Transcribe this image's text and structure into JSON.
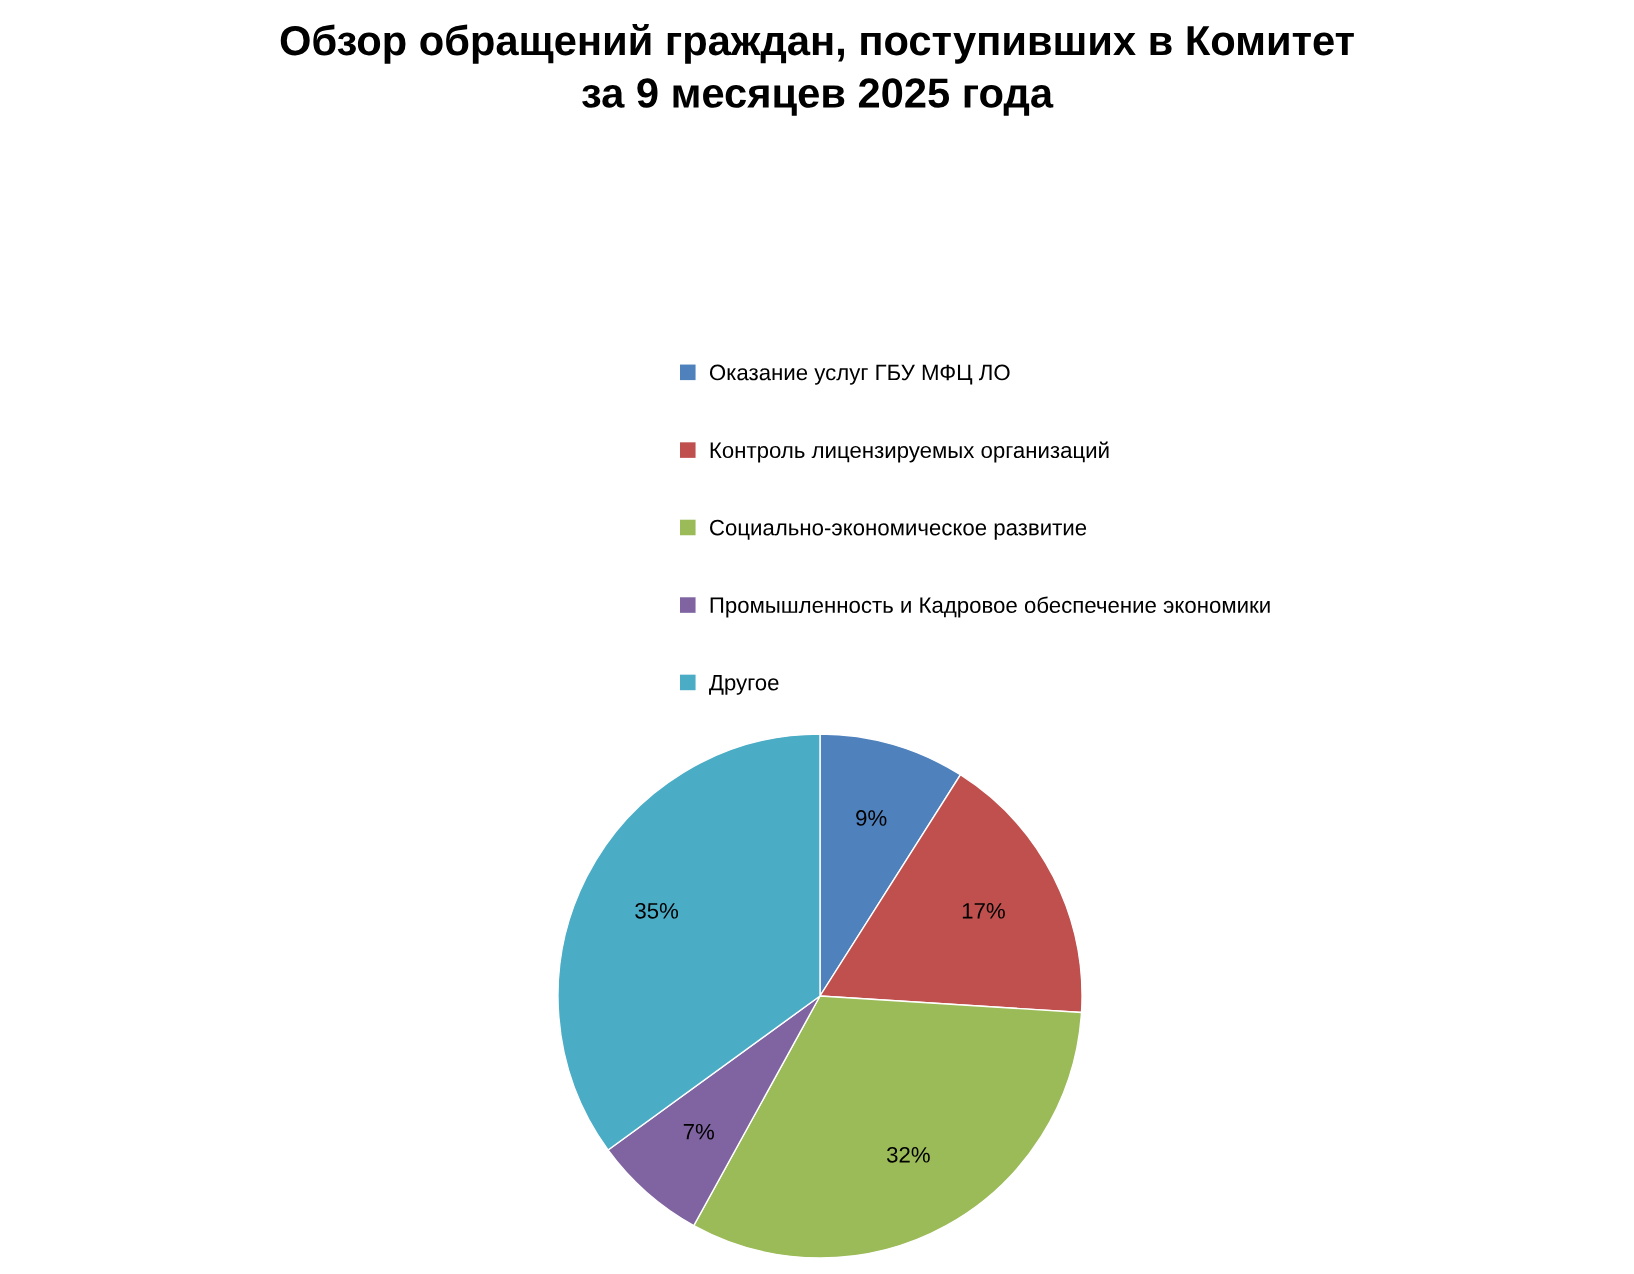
{
  "chart_data": {
    "type": "pie",
    "title": "Обзор обращений граждан, поступивших в Комитет\nза 9 месяцев 2025 года",
    "categories": [
      "Оказание услуг ГБУ МФЦ ЛО",
      "Контроль лицензируемых организаций",
      "Социально-экономическое развитие",
      "Промышленность и Кадровое обеспечение экономики",
      "Другое"
    ],
    "values": [
      9,
      17,
      32,
      7,
      35
    ],
    "colors": [
      "#4f81bd",
      "#c0504d",
      "#9bbb59",
      "#8064a2",
      "#4bacc6"
    ],
    "value_labels": [
      "9%",
      "17%",
      "32%",
      "7%",
      "35%"
    ],
    "legend": "top"
  }
}
